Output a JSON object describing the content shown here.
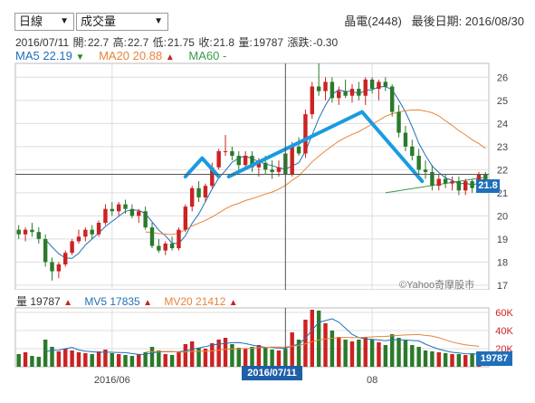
{
  "controls": {
    "period": "日線",
    "indicator": "成交量"
  },
  "header": {
    "stock": "晶電(2448)",
    "last_date_label": "最後日期:",
    "last_date": "2016/08/30"
  },
  "ohlc": {
    "date": "2016/07/11",
    "open_label": "開:",
    "open": "22.7",
    "high_label": "高:",
    "high": "22.7",
    "low_label": "低:",
    "low": "21.75",
    "close_label": "收:",
    "close": "21.8",
    "volume_label": "量:",
    "volume": "19787",
    "change_label": "漲跌:",
    "change": "-0.30"
  },
  "ma": {
    "ma5_label": "MA5",
    "ma5": "22.19",
    "ma20_label": "MA20",
    "ma20": "20.88",
    "ma60_label": "MA60",
    "ma60": "-"
  },
  "volume_row": {
    "vol_label": "量",
    "vol": "19787",
    "mv5_label": "MV5",
    "mv5": "17835",
    "mv20_label": "MV20",
    "mv20": "21412"
  },
  "watermark": "©Yahoo奇摩股市",
  "price_tag": "21.8",
  "vol_tag": "19787",
  "date_tag": "2016/07/11",
  "colors": {
    "up": "#cc2222",
    "down": "#2a7a2a",
    "ma5": "#1f6fb8",
    "ma20": "#e8843a",
    "ma60": "#3a9a4a",
    "pattern": "#1a9be0",
    "grid": "#dddddd",
    "axis": "#888888"
  },
  "chart_data": [
    {
      "type": "candlestick",
      "title": "",
      "y_ticks": [
        "17",
        "18",
        "19",
        "20",
        "21",
        "22",
        "23",
        "24",
        "25",
        "26"
      ],
      "ylim": [
        16.8,
        26.6
      ],
      "x_tick_labels": [
        {
          "label": "2016/06",
          "index": 14
        },
        {
          "label": "08",
          "index": 53
        }
      ],
      "crosshair_index": 40,
      "crosshair_price": 21.8,
      "candles": [
        {
          "o": 19.4,
          "h": 19.6,
          "l": 19.0,
          "c": 19.2
        },
        {
          "o": 19.2,
          "h": 19.5,
          "l": 18.9,
          "c": 19.4
        },
        {
          "o": 19.4,
          "h": 19.7,
          "l": 19.1,
          "c": 19.3
        },
        {
          "o": 19.3,
          "h": 19.5,
          "l": 18.8,
          "c": 19.0
        },
        {
          "o": 19.0,
          "h": 19.2,
          "l": 17.8,
          "c": 18.0
        },
        {
          "o": 18.0,
          "h": 18.2,
          "l": 17.2,
          "c": 17.6
        },
        {
          "o": 17.6,
          "h": 18.0,
          "l": 17.3,
          "c": 17.9
        },
        {
          "o": 17.9,
          "h": 18.5,
          "l": 17.8,
          "c": 18.4
        },
        {
          "o": 18.4,
          "h": 19.0,
          "l": 18.3,
          "c": 18.9
        },
        {
          "o": 18.9,
          "h": 19.4,
          "l": 18.8,
          "c": 19.1
        },
        {
          "o": 19.1,
          "h": 19.5,
          "l": 18.9,
          "c": 19.4
        },
        {
          "o": 19.4,
          "h": 19.6,
          "l": 19.0,
          "c": 19.2
        },
        {
          "o": 19.2,
          "h": 19.8,
          "l": 19.1,
          "c": 19.7
        },
        {
          "o": 19.7,
          "h": 20.5,
          "l": 19.6,
          "c": 20.3
        },
        {
          "o": 20.3,
          "h": 20.6,
          "l": 20.0,
          "c": 20.2
        },
        {
          "o": 20.2,
          "h": 20.6,
          "l": 20.0,
          "c": 20.5
        },
        {
          "o": 20.5,
          "h": 20.7,
          "l": 20.1,
          "c": 20.3
        },
        {
          "o": 20.3,
          "h": 20.5,
          "l": 19.9,
          "c": 20.0
        },
        {
          "o": 20.0,
          "h": 20.3,
          "l": 19.7,
          "c": 20.2
        },
        {
          "o": 20.2,
          "h": 20.4,
          "l": 19.4,
          "c": 19.5
        },
        {
          "o": 19.5,
          "h": 19.7,
          "l": 18.6,
          "c": 18.7
        },
        {
          "o": 18.7,
          "h": 19.0,
          "l": 18.4,
          "c": 18.5
        },
        {
          "o": 18.5,
          "h": 18.9,
          "l": 18.3,
          "c": 18.8
        },
        {
          "o": 18.8,
          "h": 19.1,
          "l": 18.5,
          "c": 18.6
        },
        {
          "o": 18.6,
          "h": 19.5,
          "l": 18.5,
          "c": 19.4
        },
        {
          "o": 19.4,
          "h": 20.5,
          "l": 19.3,
          "c": 20.4
        },
        {
          "o": 20.4,
          "h": 21.3,
          "l": 20.2,
          "c": 21.2
        },
        {
          "o": 21.2,
          "h": 21.5,
          "l": 20.6,
          "c": 20.8
        },
        {
          "o": 20.8,
          "h": 21.4,
          "l": 20.6,
          "c": 21.3
        },
        {
          "o": 21.3,
          "h": 22.3,
          "l": 21.2,
          "c": 22.1
        },
        {
          "o": 22.1,
          "h": 22.9,
          "l": 22.0,
          "c": 22.8
        },
        {
          "o": 22.8,
          "h": 23.5,
          "l": 22.6,
          "c": 22.8
        },
        {
          "o": 22.8,
          "h": 23.0,
          "l": 22.4,
          "c": 22.6
        },
        {
          "o": 22.6,
          "h": 22.8,
          "l": 22.0,
          "c": 22.2
        },
        {
          "o": 22.2,
          "h": 22.8,
          "l": 22.0,
          "c": 22.6
        },
        {
          "o": 22.6,
          "h": 22.8,
          "l": 21.9,
          "c": 22.1
        },
        {
          "o": 22.1,
          "h": 22.5,
          "l": 21.7,
          "c": 22.3
        },
        {
          "o": 22.3,
          "h": 22.6,
          "l": 21.8,
          "c": 22.0
        },
        {
          "o": 22.0,
          "h": 22.4,
          "l": 21.6,
          "c": 21.9
        },
        {
          "o": 21.9,
          "h": 22.4,
          "l": 21.7,
          "c": 22.1
        },
        {
          "o": 22.7,
          "h": 22.7,
          "l": 21.75,
          "c": 21.8
        },
        {
          "o": 21.8,
          "h": 23.2,
          "l": 21.7,
          "c": 23.0
        },
        {
          "o": 23.0,
          "h": 23.4,
          "l": 22.6,
          "c": 22.7
        },
        {
          "o": 22.7,
          "h": 24.6,
          "l": 22.5,
          "c": 24.4
        },
        {
          "o": 24.4,
          "h": 25.8,
          "l": 24.2,
          "c": 25.6
        },
        {
          "o": 25.6,
          "h": 26.6,
          "l": 25.2,
          "c": 25.4
        },
        {
          "o": 25.4,
          "h": 26.0,
          "l": 25.0,
          "c": 25.8
        },
        {
          "o": 25.8,
          "h": 26.0,
          "l": 24.9,
          "c": 25.1
        },
        {
          "o": 25.1,
          "h": 25.6,
          "l": 24.8,
          "c": 25.4
        },
        {
          "o": 25.4,
          "h": 25.9,
          "l": 25.1,
          "c": 25.2
        },
        {
          "o": 25.2,
          "h": 25.7,
          "l": 24.9,
          "c": 25.5
        },
        {
          "o": 25.5,
          "h": 25.8,
          "l": 25.0,
          "c": 25.2
        },
        {
          "o": 25.2,
          "h": 26.0,
          "l": 24.8,
          "c": 25.9
        },
        {
          "o": 25.9,
          "h": 26.0,
          "l": 25.3,
          "c": 25.5
        },
        {
          "o": 25.5,
          "h": 25.9,
          "l": 25.0,
          "c": 25.8
        },
        {
          "o": 25.8,
          "h": 26.0,
          "l": 25.4,
          "c": 25.6
        },
        {
          "o": 25.6,
          "h": 25.7,
          "l": 24.3,
          "c": 24.5
        },
        {
          "o": 24.5,
          "h": 24.8,
          "l": 23.4,
          "c": 23.6
        },
        {
          "o": 23.6,
          "h": 23.9,
          "l": 22.8,
          "c": 23.0
        },
        {
          "o": 23.0,
          "h": 23.3,
          "l": 22.4,
          "c": 22.6
        },
        {
          "o": 22.6,
          "h": 22.9,
          "l": 21.8,
          "c": 22.0
        },
        {
          "o": 22.0,
          "h": 22.4,
          "l": 21.6,
          "c": 21.9
        },
        {
          "o": 21.9,
          "h": 22.2,
          "l": 21.1,
          "c": 21.3
        },
        {
          "o": 21.3,
          "h": 21.8,
          "l": 21.1,
          "c": 21.6
        },
        {
          "o": 21.6,
          "h": 21.8,
          "l": 21.2,
          "c": 21.4
        },
        {
          "o": 21.4,
          "h": 21.7,
          "l": 21.1,
          "c": 21.5
        },
        {
          "o": 21.5,
          "h": 21.7,
          "l": 20.9,
          "c": 21.1
        },
        {
          "o": 21.1,
          "h": 21.6,
          "l": 20.9,
          "c": 21.5
        },
        {
          "o": 21.5,
          "h": 21.6,
          "l": 21.0,
          "c": 21.2
        },
        {
          "o": 21.2,
          "h": 21.9,
          "l": 21.1,
          "c": 21.8
        },
        {
          "o": 21.8,
          "h": 21.9,
          "l": 21.3,
          "c": 21.5
        }
      ],
      "pattern_lines": [
        [
          [
            25,
            21.7
          ],
          [
            27.5,
            22.5
          ],
          [
            30,
            21.7
          ]
        ],
        [
          [
            31.5,
            21.7
          ],
          [
            51.5,
            24.5
          ],
          [
            60.5,
            21.5
          ]
        ]
      ]
    },
    {
      "type": "bar",
      "title": "",
      "y_ticks": [
        "20K",
        "40K",
        "60K"
      ],
      "ylim": [
        0,
        65000
      ],
      "volumes": [
        14000,
        16000,
        12000,
        11000,
        30000,
        22000,
        17000,
        20000,
        18000,
        16000,
        15000,
        14000,
        17000,
        19000,
        15000,
        14000,
        13000,
        12000,
        14000,
        16000,
        22000,
        18000,
        14000,
        13000,
        17000,
        25000,
        28000,
        21000,
        20000,
        26000,
        30000,
        32000,
        25000,
        21000,
        20000,
        22000,
        24000,
        21000,
        19000,
        18000,
        19787,
        38000,
        30000,
        52000,
        63000,
        62000,
        48000,
        40000,
        33000,
        30000,
        28000,
        30000,
        33000,
        30000,
        27000,
        24000,
        36000,
        32000,
        29000,
        24000,
        22000,
        18000,
        17000,
        16000,
        15000,
        14000,
        14000,
        13000,
        15000,
        14000
      ]
    }
  ]
}
